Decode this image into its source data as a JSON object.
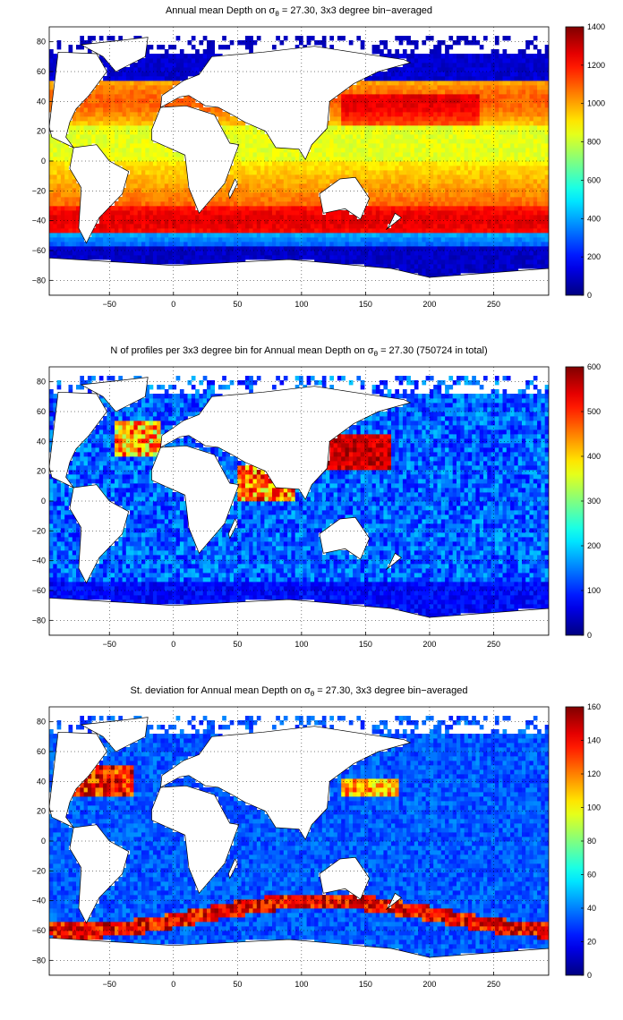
{
  "panels": [
    {
      "title_pre": "Annual mean Depth on ",
      "title_sym": "σ",
      "title_sub": "θ",
      "title_post": " = 27.30, 3x3 degree bin−averaged",
      "colorbar": {
        "min": 0,
        "max": 1400,
        "ticks": [
          "0",
          "200",
          "400",
          "600",
          "800",
          "1000",
          "1200",
          "1400"
        ]
      }
    },
    {
      "title_pre": "N of profiles per 3x3 degree bin for Annual mean Depth on ",
      "title_sym": "σ",
      "title_sub": "θ",
      "title_post": " = 27.30 (750724 in total)",
      "colorbar": {
        "min": 0,
        "max": 600,
        "ticks": [
          "0",
          "100",
          "200",
          "300",
          "400",
          "500",
          "600"
        ]
      }
    },
    {
      "title_pre": "St. deviation for Annual mean Depth on ",
      "title_sym": "σ",
      "title_sub": "θ",
      "title_post": " = 27.30, 3x3 degree bin−averaged",
      "colorbar": {
        "min": 0,
        "max": 160,
        "ticks": [
          "0",
          "20",
          "40",
          "60",
          "80",
          "100",
          "120",
          "140",
          "160"
        ]
      }
    }
  ],
  "axes": {
    "x_ticks": [
      "−50",
      "0",
      "50",
      "100",
      "150",
      "200",
      "250"
    ],
    "y_ticks": [
      "80",
      "60",
      "40",
      "20",
      "0",
      "−20",
      "−40",
      "−60",
      "−80"
    ],
    "xlim": [
      -97,
      293
    ],
    "ylim": [
      -90,
      90
    ],
    "grid": "dotted"
  },
  "colormap": "jet",
  "land_color": "#ffffff",
  "coastline_color": "#000000"
}
